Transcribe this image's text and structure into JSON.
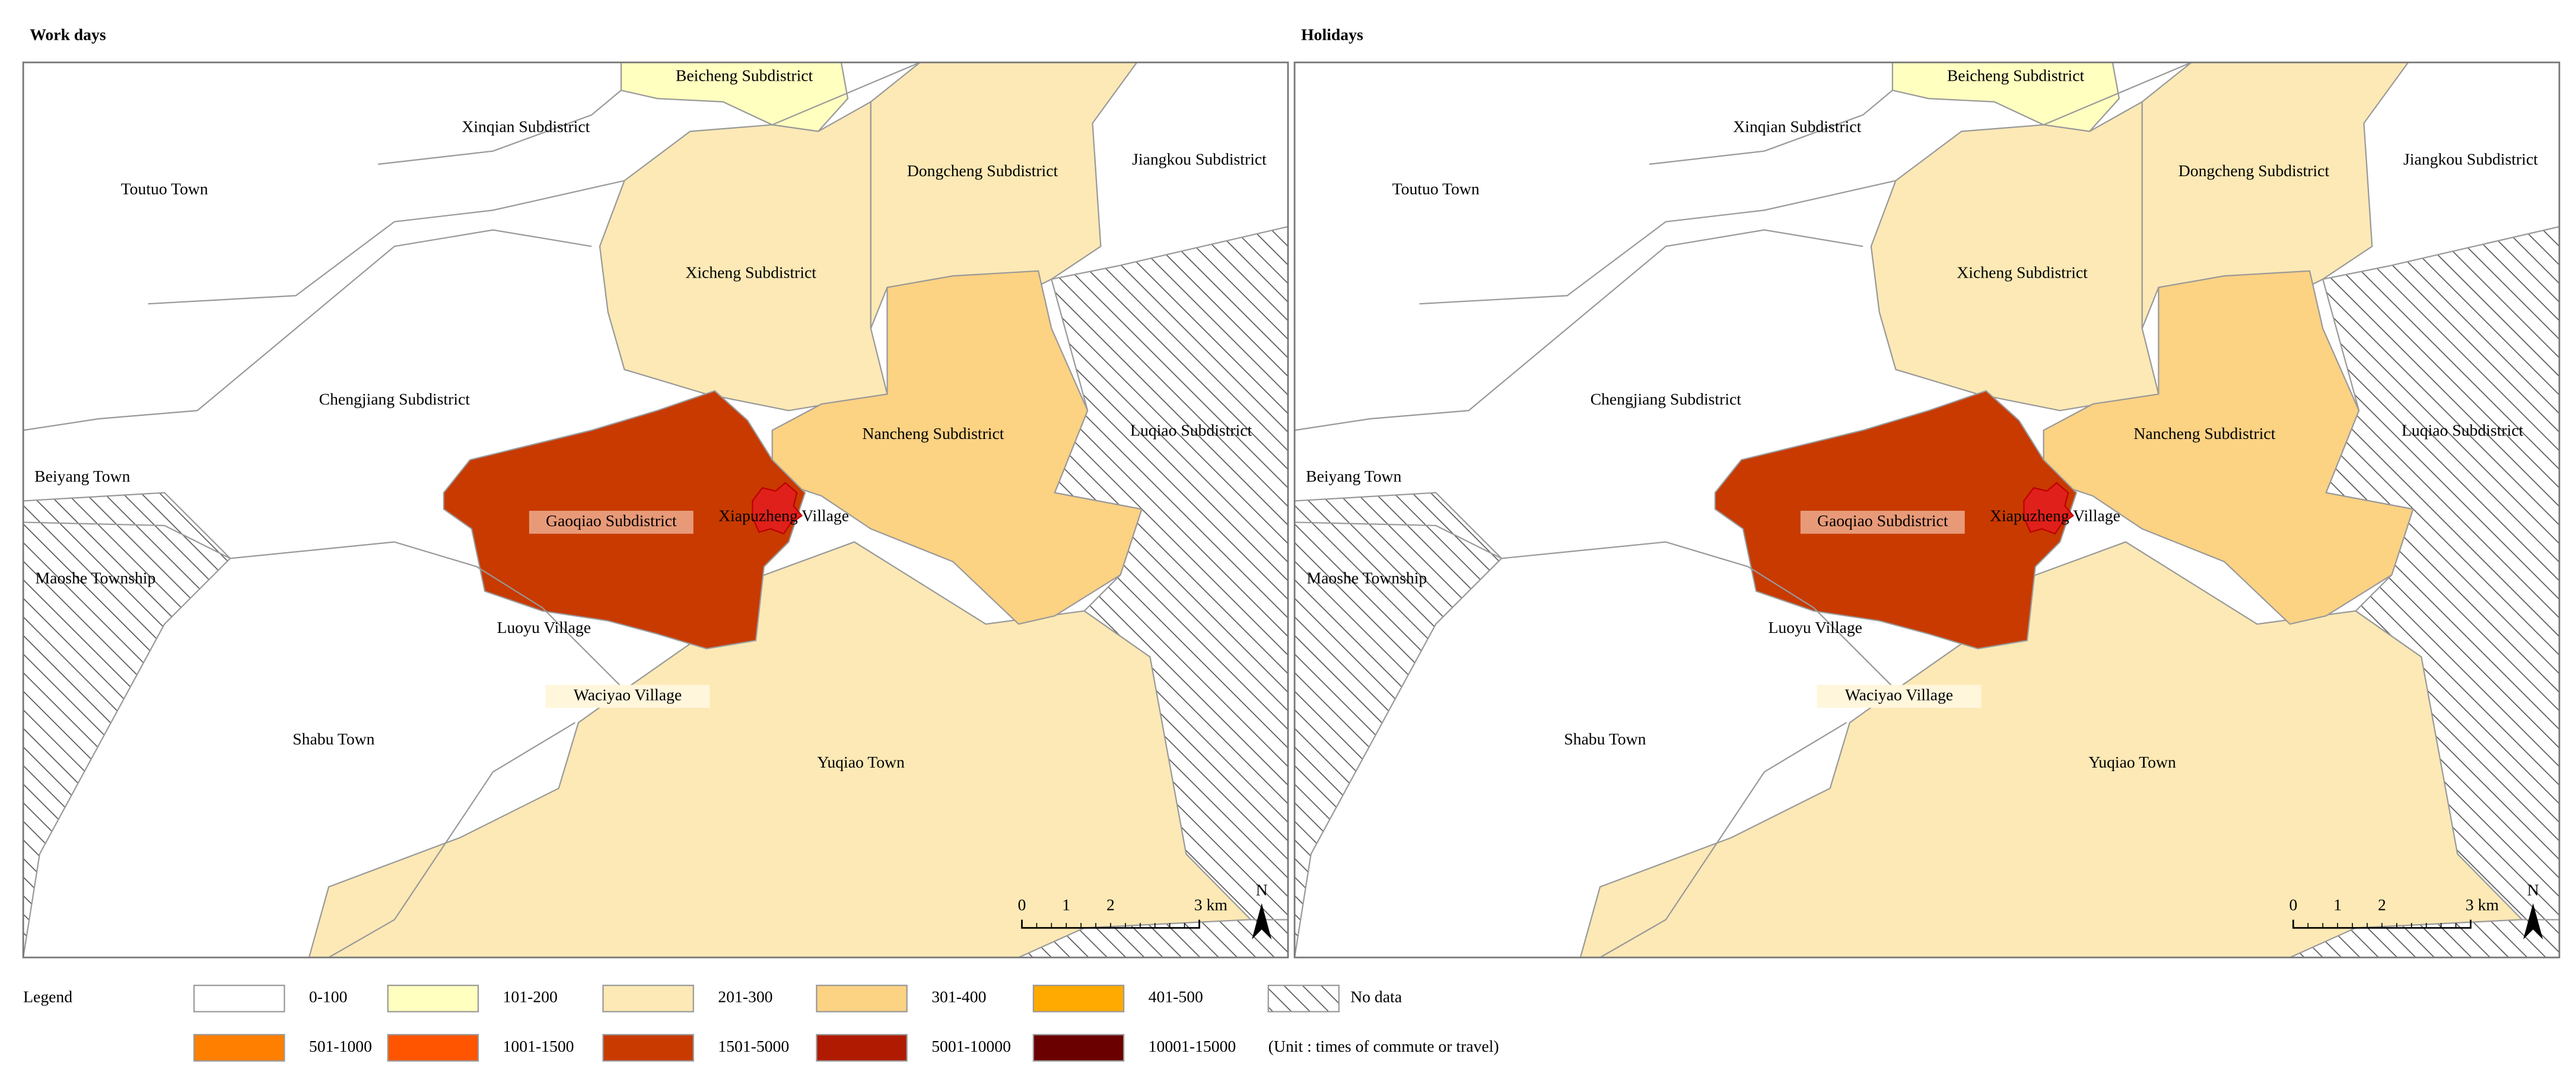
{
  "panels": [
    {
      "title": "Work days"
    },
    {
      "title": "Holidays"
    }
  ],
  "regions": [
    {
      "label": "Beicheng Subdistrict"
    },
    {
      "label": "Xinqian Subdistrict"
    },
    {
      "label": "Toutuo Town"
    },
    {
      "label": "Dongcheng Subdistrict"
    },
    {
      "label": "Jiangkou Subdistrict"
    },
    {
      "label": "Xicheng Subdistrict"
    },
    {
      "label": "Chengjiang Subdistrict"
    },
    {
      "label": "Nancheng Subdistrict"
    },
    {
      "label": "Luqiao Subdistrict"
    },
    {
      "label": "Beiyang Town"
    },
    {
      "label": "Gaoqiao Subdistrict"
    },
    {
      "label": "Xiapuzheng Village"
    },
    {
      "label": "Maoshe Township"
    },
    {
      "label": "Luoyu Village"
    },
    {
      "label": "Waciyao Village"
    },
    {
      "label": "Shabu Town"
    },
    {
      "label": "Yuqiao Town"
    }
  ],
  "scale_bar": [
    "0",
    "1",
    "2",
    "3 km"
  ],
  "north": "N",
  "legend": {
    "title": "Legend",
    "items": [
      {
        "label": "0-100",
        "color": "#ffffff"
      },
      {
        "label": "101-200",
        "color": "#ffffc0"
      },
      {
        "label": "201-300",
        "color": "#fde9b5"
      },
      {
        "label": "301-400",
        "color": "#fcd283"
      },
      {
        "label": "401-500",
        "color": "#ffaa00"
      },
      {
        "label": "501-1000",
        "color": "#ff7f00"
      },
      {
        "label": "1001-1500",
        "color": "#ff5500"
      },
      {
        "label": "1501-5000",
        "color": "#c83a00"
      },
      {
        "label": "5001-10000",
        "color": "#b01a00"
      },
      {
        "label": "10001-15000",
        "color": "#6b0000"
      }
    ],
    "no_data": "No data",
    "unit": "(Unit : times of commute or travel)"
  }
}
